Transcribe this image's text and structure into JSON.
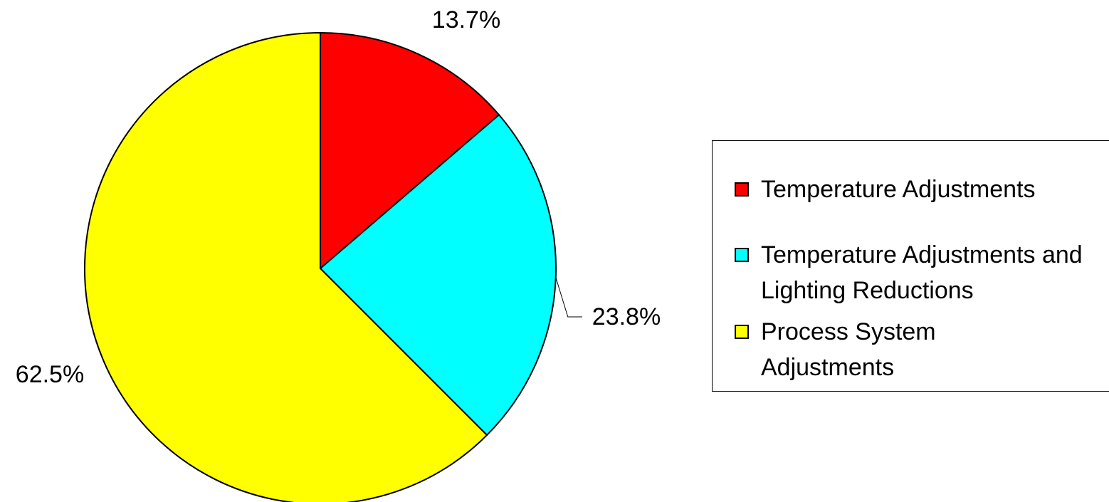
{
  "chart_data": {
    "type": "pie",
    "categories": [
      "Temperature Adjustments",
      "Temperature Adjustments and Lighting Reductions",
      "Process System Adjustments"
    ],
    "values": [
      13.7,
      23.8,
      62.5
    ],
    "value_labels": [
      "13.7%",
      "23.8%",
      "62.5%"
    ],
    "colors": [
      "#ff0000",
      "#00ffff",
      "#ffff00"
    ],
    "legend": "right"
  }
}
